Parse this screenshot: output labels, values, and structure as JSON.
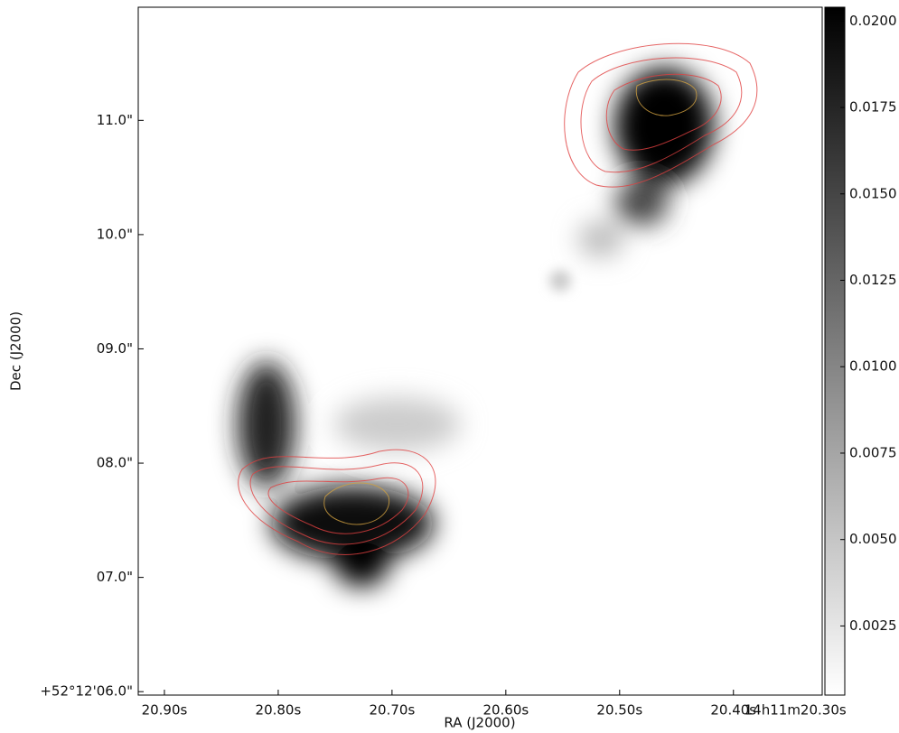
{
  "chart_data": {
    "type": "image",
    "xlabel": "RA (J2000)",
    "ylabel": "Dec (J2000)",
    "xlim": [
      20.923,
      20.322
    ],
    "xticks": [
      {
        "value": 20.9,
        "label": "20.90s"
      },
      {
        "value": 20.8,
        "label": "20.80s"
      },
      {
        "value": 20.7,
        "label": "20.70s"
      },
      {
        "value": 20.6,
        "label": "20.60s"
      },
      {
        "value": 20.5,
        "label": "20.50s"
      },
      {
        "value": 20.4,
        "label": "20.40s"
      },
      {
        "value": 20.3,
        "label": "14h11m20.30s"
      }
    ],
    "ylim": [
      5.97,
      11.99
    ],
    "yticks": [
      {
        "value": 6,
        "label": "+52°12'06.0\""
      },
      {
        "value": 7,
        "label": "07.0\""
      },
      {
        "value": 8,
        "label": "08.0\""
      },
      {
        "value": 9,
        "label": "09.0\""
      },
      {
        "value": 10,
        "label": "10.0\""
      },
      {
        "value": 11,
        "label": "11.0\""
      }
    ],
    "colorbar": {
      "lim": [
        0.0005,
        0.0204
      ],
      "ticks": [
        {
          "value": 0.0025,
          "label": "0.0025"
        },
        {
          "value": 0.005,
          "label": "0.0050"
        },
        {
          "value": 0.0075,
          "label": "0.0075"
        },
        {
          "value": 0.01,
          "label": "0.0100"
        },
        {
          "value": 0.0125,
          "label": "0.0125"
        },
        {
          "value": 0.015,
          "label": "0.0150"
        },
        {
          "value": 0.0175,
          "label": "0.0175"
        },
        {
          "value": 0.02,
          "label": "0.0200"
        }
      ]
    }
  }
}
